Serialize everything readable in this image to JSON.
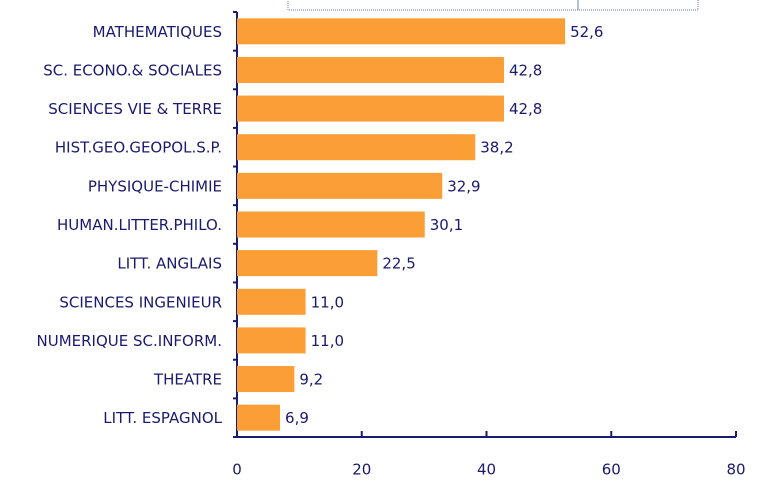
{
  "chart_data": {
    "type": "bar",
    "orientation": "horizontal",
    "categories": [
      "MATHEMATIQUES",
      "SC. ECONO.& SOCIALES",
      "SCIENCES VIE & TERRE",
      "HIST.GEO.GEOPOL.S.P.",
      "PHYSIQUE-CHIMIE",
      "HUMAN.LITTER.PHILO.",
      "LITT. ANGLAIS",
      "SCIENCES INGENIEUR",
      "NUMERIQUE SC.INFORM.",
      "THEATRE",
      "LITT. ESPAGNOL"
    ],
    "values": [
      52.6,
      42.8,
      42.8,
      38.2,
      32.9,
      30.1,
      22.5,
      11.0,
      11.0,
      9.2,
      6.9
    ],
    "value_labels": [
      "52,6",
      "42,8",
      "42,8",
      "38,2",
      "32,9",
      "30,1",
      "22,5",
      "11,0",
      "11,0",
      "9,2",
      "6,9"
    ],
    "color": "#fb9e36",
    "xlim": [
      0,
      80
    ],
    "xticks": [
      0,
      20,
      40,
      60,
      80
    ]
  }
}
